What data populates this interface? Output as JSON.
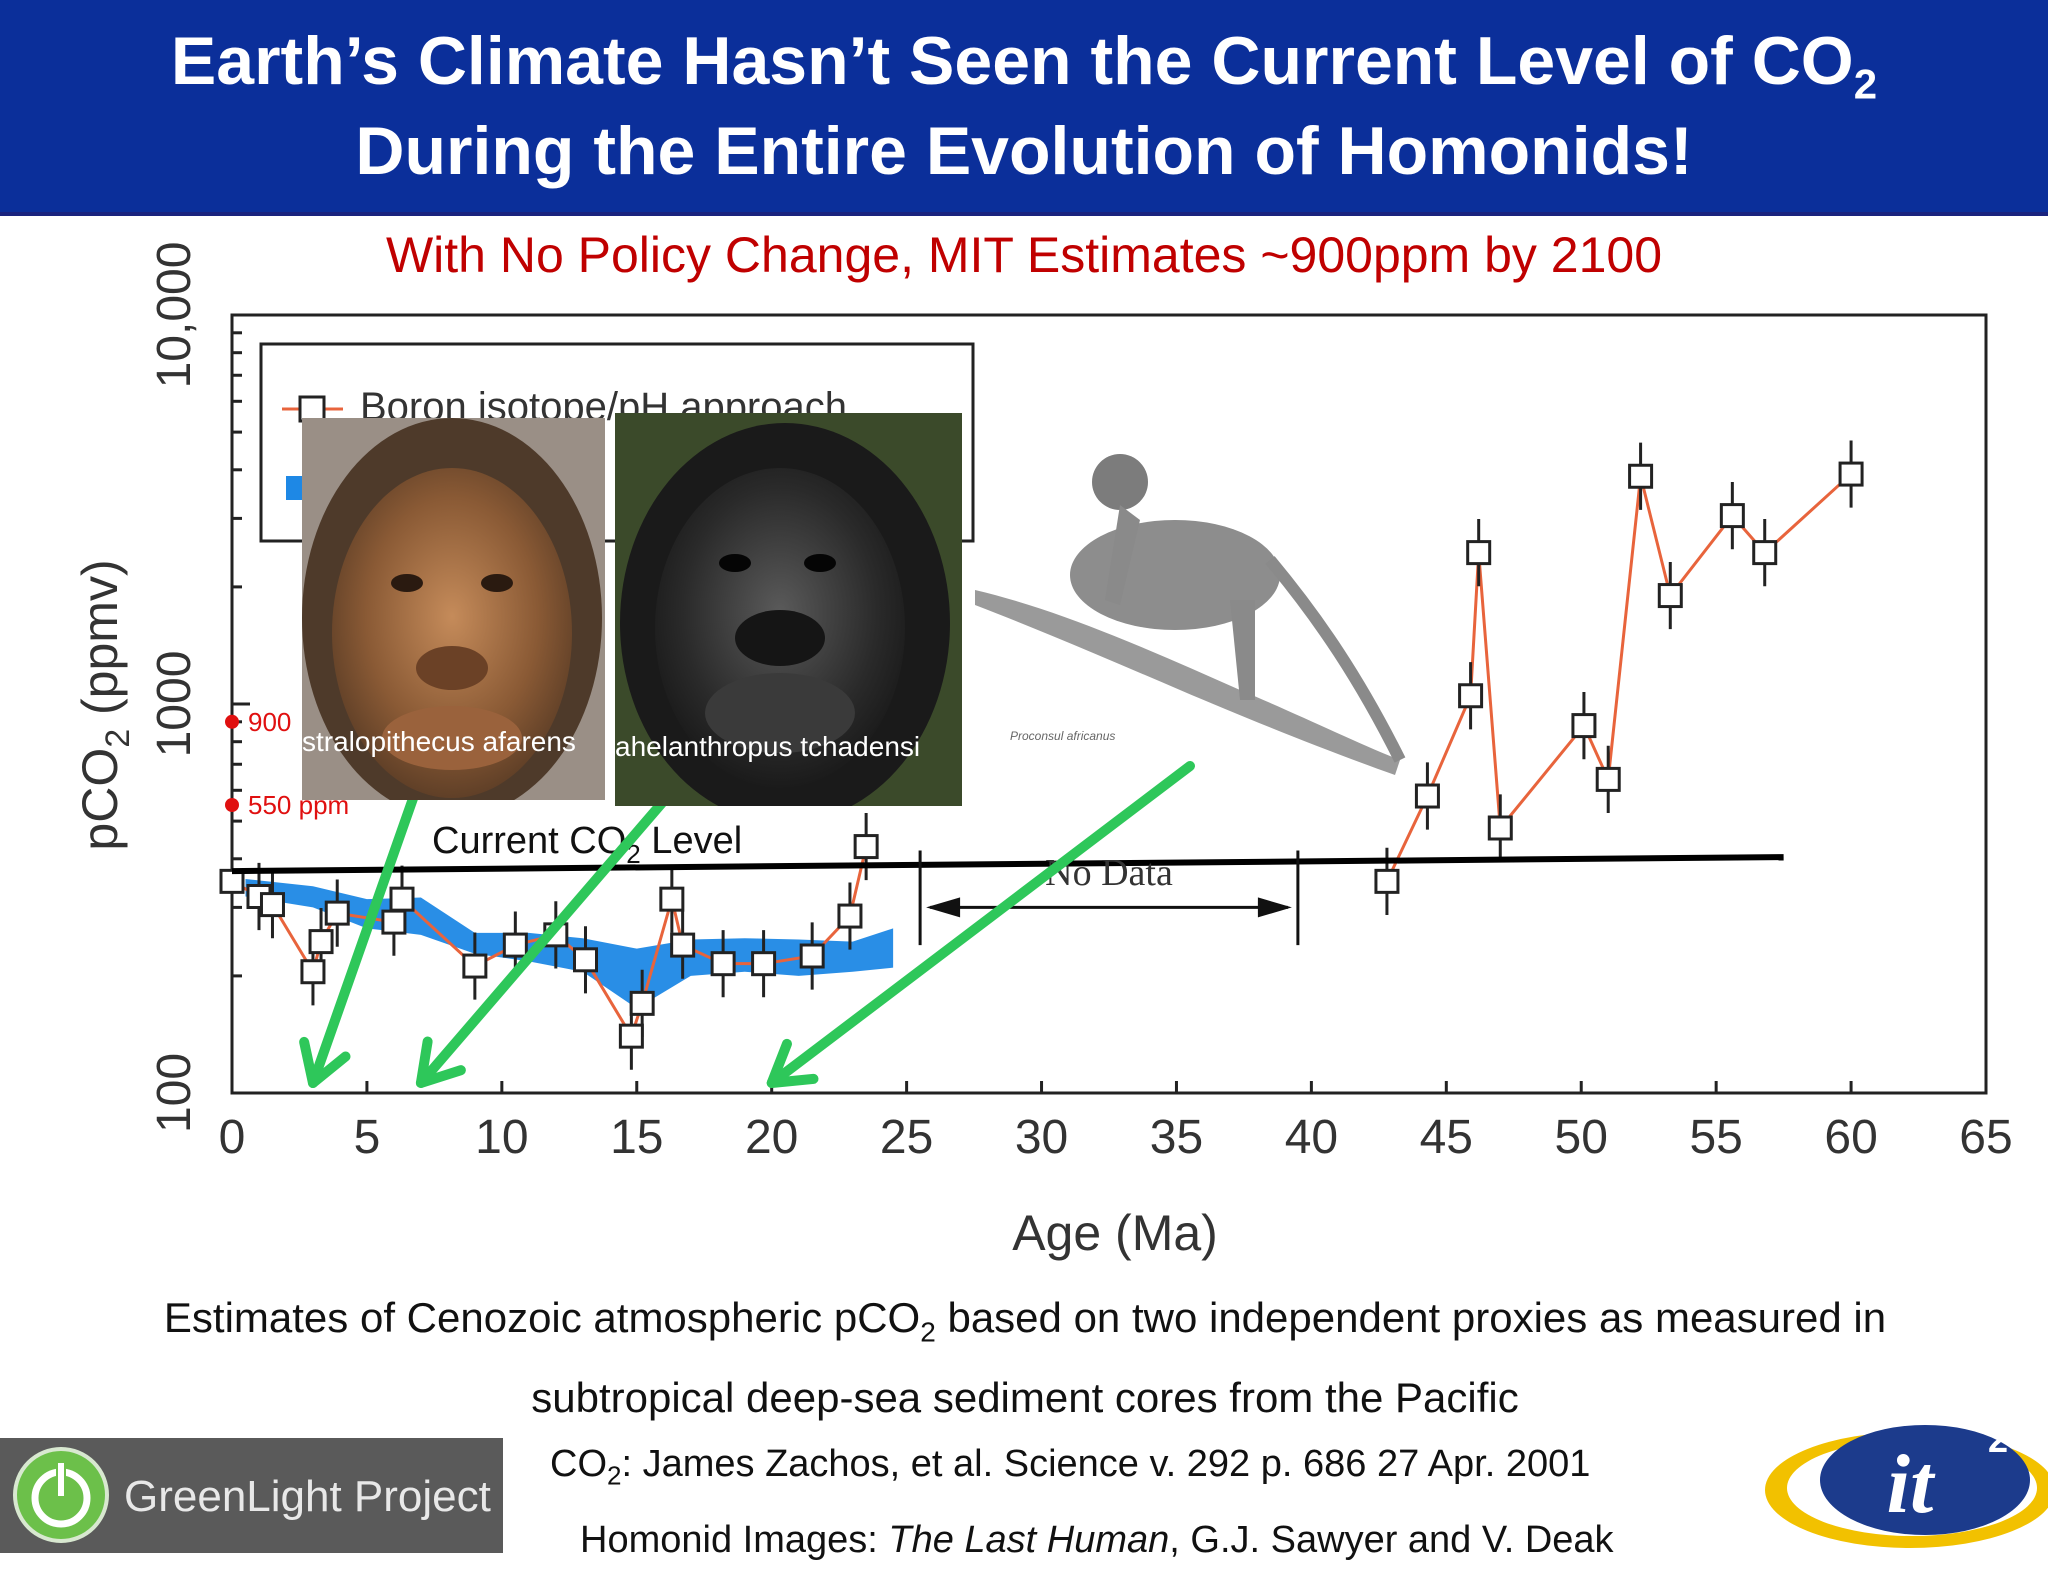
{
  "title": {
    "line1_main": "Earth’s Climate Hasn’t Seen the Current Level of CO",
    "line1_sub": "2",
    "line2": "During the Entire Evolution of Homonids!"
  },
  "subtitle": "With No Policy Change, MIT Estimates ~900ppm by 2100",
  "chart_data": {
    "type": "scatter",
    "xlabel": "Age (Ma)",
    "ylabel_main": "pCO",
    "ylabel_sub": "2",
    "ylabel_unit": " (ppmv)",
    "xlim": [
      0,
      65
    ],
    "ylim": [
      100,
      10000
    ],
    "yscale": "log",
    "x_ticks": [
      "0",
      "5",
      "10",
      "15",
      "20",
      "25",
      "30",
      "35",
      "40",
      "45",
      "50",
      "55",
      "60",
      "65"
    ],
    "y_ticks": [
      "100",
      "1000",
      "10,000"
    ],
    "series": [
      {
        "name": "Boron isotope/pH approach",
        "color": "#e8643c",
        "x": [
          0,
          1,
          1.5,
          3,
          3.3,
          3.9,
          6,
          6.3,
          9,
          10.5,
          12,
          13.1,
          14.8,
          15.2,
          16.3,
          16.7,
          18.2,
          19.7,
          21.5,
          22.9,
          23.5,
          42.8,
          44.3,
          45.9,
          46.2,
          47,
          50.1,
          51,
          52.2,
          53.3,
          55.6,
          56.8,
          60
        ],
        "y": [
          350,
          320,
          305,
          205,
          245,
          290,
          275,
          315,
          212,
          240,
          255,
          220,
          140,
          170,
          315,
          240,
          215,
          215,
          225,
          285,
          430,
          350,
          580,
          1050,
          2450,
          480,
          880,
          640,
          3850,
          1900,
          3050,
          2450,
          3900
        ]
      },
      {
        "name": "",
        "color": "#1e88e5",
        "band_x": [
          0.5,
          3,
          5,
          7,
          9,
          11,
          13,
          15,
          17,
          19,
          21,
          23,
          24.5
        ],
        "band_low": [
          320,
          300,
          265,
          255,
          228,
          218,
          205,
          165,
          200,
          205,
          200,
          205,
          210
        ],
        "band_high": [
          355,
          340,
          315,
          318,
          258,
          258,
          250,
          235,
          248,
          250,
          248,
          245,
          265
        ]
      }
    ],
    "current_level_label_main": "Current CO",
    "current_level_label_sub": "2",
    "current_level_label_end": " Level",
    "current_level_ppm": 390,
    "no_data_label": "No Data",
    "no_data_range": [
      25.5,
      39.5
    ],
    "markers": [
      {
        "label": "900",
        "ppm": 900
      },
      {
        "label": "550 ppm",
        "ppm": 550
      }
    ],
    "legend_entry_1": "Boron isotope/pH approach"
  },
  "photos": {
    "photo1_caption": "stralopithecus afarens",
    "photo2_caption": "ahelanthropus tchadensi",
    "drawing_caption": "Proconsul africanus"
  },
  "arrows_target_ma": [
    3,
    7,
    20
  ],
  "caption": {
    "line1_a": "Estimates of Cenozoic atmospheric pCO",
    "line1_sub": "2",
    "line1_b": " based on two independent proxies as measured in",
    "line2": "subtropical deep-sea sediment cores from the Pacific"
  },
  "citation": {
    "line1_a": "CO",
    "line1_sub": "2",
    "line1_b": ": James Zachos, et al. Science v. 292 p. 686 27 Apr. 2001",
    "line2_a": "Homonid Images: ",
    "line2_italic": "The Last Human",
    "line2_b": ", G.J. Sawyer and V. Deak"
  },
  "logos": {
    "greenlight": "GreenLight Project",
    "it2_main": "it",
    "it2_sup": "2"
  },
  "colors": {
    "title_bg": "#0b2f9a",
    "subtitle": "#c00000",
    "arrow": "#2ec75a",
    "marker_red": "#e01010"
  }
}
